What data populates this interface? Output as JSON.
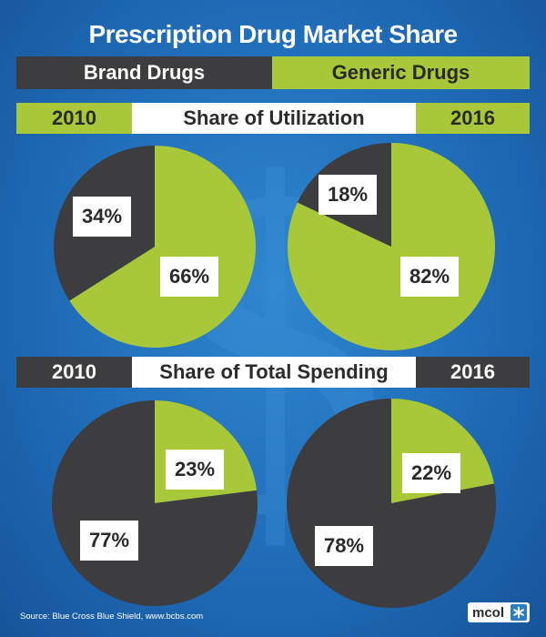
{
  "title": "Prescription Drug Market Share",
  "legend": {
    "brand_label": "Brand Drugs",
    "generic_label": "Generic Drugs"
  },
  "sections": [
    {
      "label": "Share of Utilization",
      "year_left": "2010",
      "year_right": "2016"
    },
    {
      "label": "Share of Total Spending",
      "year_left": "2010",
      "year_right": "2016"
    }
  ],
  "colors": {
    "brand": "#3d3c3e",
    "generic": "#a8c739",
    "background": "#2271bd"
  },
  "chart_data": [
    {
      "type": "pie",
      "section": "Share of Utilization",
      "year": "2010",
      "slices": [
        {
          "label": "Brand Drugs",
          "value": 34,
          "text": "34%"
        },
        {
          "label": "Generic Drugs",
          "value": 66,
          "text": "66%"
        }
      ]
    },
    {
      "type": "pie",
      "section": "Share of Utilization",
      "year": "2016",
      "slices": [
        {
          "label": "Brand Drugs",
          "value": 18,
          "text": "18%"
        },
        {
          "label": "Generic Drugs",
          "value": 82,
          "text": "82%"
        }
      ]
    },
    {
      "type": "pie",
      "section": "Share of Total Spending",
      "year": "2010",
      "slices": [
        {
          "label": "Brand Drugs",
          "value": 77,
          "text": "77%"
        },
        {
          "label": "Generic Drugs",
          "value": 23,
          "text": "23%"
        }
      ]
    },
    {
      "type": "pie",
      "section": "Share of Total Spending",
      "year": "2016",
      "slices": [
        {
          "label": "Brand Drugs",
          "value": 78,
          "text": "78%"
        },
        {
          "label": "Generic Drugs",
          "value": 22,
          "text": "22%"
        }
      ]
    }
  ],
  "source": "Source:    Blue Cross Blue Shield, www.bcbs.com",
  "logo": {
    "text": "mcol"
  }
}
